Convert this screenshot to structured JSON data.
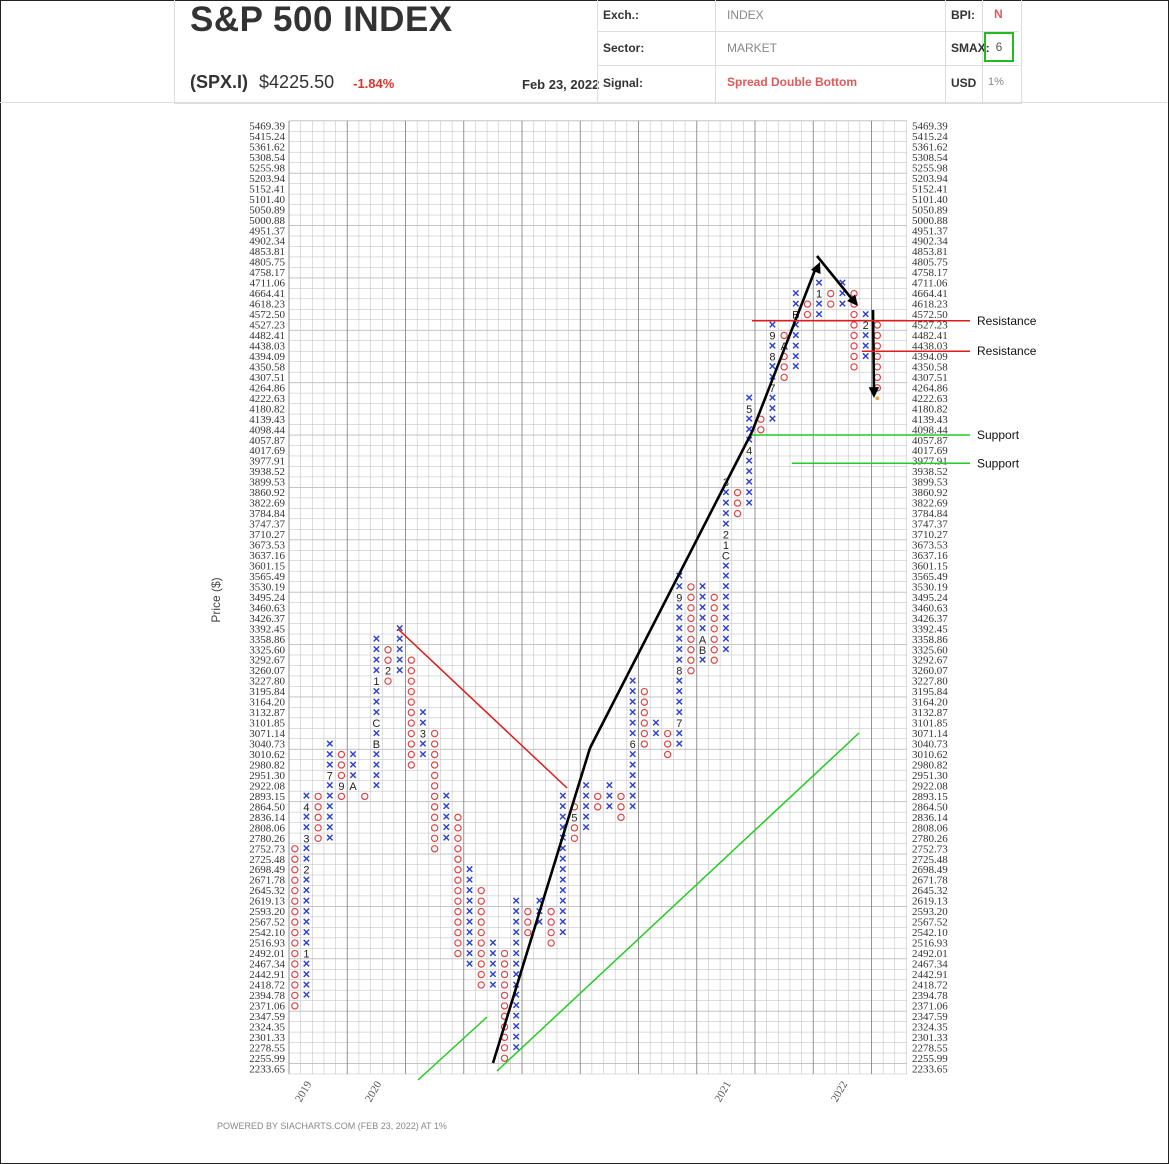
{
  "header": {
    "title": "S&P 500 INDEX",
    "ticker": "(SPX.I)",
    "price": "$4225.50",
    "change": "-1.84%",
    "date": "Feb 23, 2022",
    "exch_label": "Exch.:",
    "exch_value": "INDEX",
    "sector_label": "Sector:",
    "sector_value": "MARKET",
    "signal_label": "Signal:",
    "signal_value": "Spread Double Bottom",
    "bpi_label": "BPI:",
    "bpi_value": "N",
    "smax_label": "SMAX:",
    "smax_value": "6",
    "usd_label": "USD",
    "usd_value": "1%"
  },
  "colors": {
    "x_mark": "#2b3fd8",
    "o_mark": "#e04444",
    "resistance": "#e01b1b",
    "support": "#22cc22",
    "trend": "#000000",
    "grid": "#bbbbbb",
    "grid_major": "#888888"
  },
  "chart_data": {
    "type": "point-and-figure",
    "ylabel": "Price ($)",
    "footer": "POWERED BY SIACHARTS.COM (FEB 23, 2022) AT 1%",
    "box_size_pct": 1,
    "y_ticks": [
      "5469.39",
      "5415.24",
      "5361.62",
      "5308.54",
      "5255.98",
      "5203.94",
      "5152.41",
      "5101.40",
      "5050.89",
      "5000.88",
      "4951.37",
      "4902.34",
      "4853.81",
      "4805.75",
      "4758.17",
      "4711.06",
      "4664.41",
      "4618.23",
      "4572.50",
      "4527.23",
      "4482.41",
      "4438.03",
      "4394.09",
      "4350.58",
      "4307.51",
      "4264.86",
      "4222.63",
      "4180.82",
      "4139.43",
      "4098.44",
      "4057.87",
      "4017.69",
      "3977.91",
      "3938.52",
      "3899.53",
      "3860.92",
      "3822.69",
      "3784.84",
      "3747.37",
      "3710.27",
      "3673.53",
      "3637.16",
      "3601.15",
      "3565.49",
      "3530.19",
      "3495.24",
      "3460.63",
      "3426.37",
      "3392.45",
      "3358.86",
      "3325.60",
      "3292.67",
      "3260.07",
      "3227.80",
      "3195.84",
      "3164.20",
      "3132.87",
      "3101.85",
      "3071.14",
      "3040.73",
      "3010.62",
      "2980.82",
      "2951.30",
      "2922.08",
      "2893.15",
      "2864.50",
      "2836.14",
      "2808.06",
      "2780.26",
      "2752.73",
      "2725.48",
      "2698.49",
      "2671.78",
      "2645.32",
      "2619.13",
      "2593.20",
      "2567.52",
      "2542.10",
      "2516.93",
      "2492.01",
      "2467.34",
      "2442.91",
      "2418.72",
      "2394.78",
      "2371.06",
      "2347.59",
      "2324.35",
      "2301.33",
      "2278.55",
      "2255.99",
      "2233.65"
    ],
    "x_year_labels": [
      {
        "label": "2019",
        "col": 0
      },
      {
        "label": "2020",
        "col": 6
      },
      {
        "label": "2021",
        "col": 36
      },
      {
        "label": "2022",
        "col": 46
      }
    ],
    "columns": [
      {
        "type": "O",
        "top": "2752.73",
        "bottom": "2371.06"
      },
      {
        "type": "X",
        "top": "2893.15",
        "bottom": "2394.78"
      },
      {
        "type": "O",
        "top": "2893.15",
        "bottom": "2780.26"
      },
      {
        "type": "X",
        "top": "3040.73",
        "bottom": "2780.26"
      },
      {
        "type": "O",
        "top": "3010.62",
        "bottom": "2893.15"
      },
      {
        "type": "X",
        "top": "3010.62",
        "bottom": "2922.08"
      },
      {
        "type": "O",
        "top": "2893.15",
        "bottom": "2893.15"
      },
      {
        "type": "X",
        "top": "3358.86",
        "bottom": "2922.08"
      },
      {
        "type": "O",
        "top": "3325.60",
        "bottom": "3227.80"
      },
      {
        "type": "X",
        "top": "3392.45",
        "bottom": "3260.07"
      },
      {
        "type": "O",
        "top": "3292.67",
        "bottom": "2980.82"
      },
      {
        "type": "X",
        "top": "3132.87",
        "bottom": "3010.62"
      },
      {
        "type": "O",
        "top": "3071.14",
        "bottom": "2752.73"
      },
      {
        "type": "X",
        "top": "2893.15",
        "bottom": "2780.26"
      },
      {
        "type": "O",
        "top": "2836.14",
        "bottom": "2492.01"
      },
      {
        "type": "X",
        "top": "2698.49",
        "bottom": "2467.34"
      },
      {
        "type": "O",
        "top": "2645.32",
        "bottom": "2418.72"
      },
      {
        "type": "X",
        "top": "2516.93",
        "bottom": "2418.72"
      },
      {
        "type": "O",
        "top": "2492.01",
        "bottom": "2255.99"
      },
      {
        "type": "X",
        "top": "2619.13",
        "bottom": "2278.55"
      },
      {
        "type": "O",
        "top": "2593.20",
        "bottom": "2542.10"
      },
      {
        "type": "X",
        "top": "2619.13",
        "bottom": "2567.52"
      },
      {
        "type": "O",
        "top": "2593.20",
        "bottom": "2516.93"
      },
      {
        "type": "X",
        "top": "2893.15",
        "bottom": "2542.10"
      },
      {
        "type": "O",
        "top": "2864.50",
        "bottom": "2780.26"
      },
      {
        "type": "X",
        "top": "2922.08",
        "bottom": "2808.06"
      },
      {
        "type": "O",
        "top": "2893.15",
        "bottom": "2864.50"
      },
      {
        "type": "X",
        "top": "2922.08",
        "bottom": "2864.50"
      },
      {
        "type": "O",
        "top": "2893.15",
        "bottom": "2836.14"
      },
      {
        "type": "X",
        "top": "3227.80",
        "bottom": "2864.50"
      },
      {
        "type": "O",
        "top": "3195.84",
        "bottom": "3040.73"
      },
      {
        "type": "X",
        "top": "3101.85",
        "bottom": "3071.14"
      },
      {
        "type": "O",
        "top": "3071.14",
        "bottom": "3010.62"
      },
      {
        "type": "X",
        "top": "3565.49",
        "bottom": "3040.73"
      },
      {
        "type": "O",
        "top": "3530.19",
        "bottom": "3260.07"
      },
      {
        "type": "X",
        "top": "3530.19",
        "bottom": "3292.67"
      },
      {
        "type": "O",
        "top": "3495.24",
        "bottom": "3292.67"
      },
      {
        "type": "X",
        "top": "3899.53",
        "bottom": "3325.60"
      },
      {
        "type": "O",
        "top": "3860.92",
        "bottom": "3784.84"
      },
      {
        "type": "X",
        "top": "4222.63",
        "bottom": "3822.69"
      },
      {
        "type": "O",
        "top": "4139.43",
        "bottom": "4098.44"
      },
      {
        "type": "X",
        "top": "4527.23",
        "bottom": "4139.43"
      },
      {
        "type": "O",
        "top": "4482.41",
        "bottom": "4307.51"
      },
      {
        "type": "X",
        "top": "4664.41",
        "bottom": "4350.58"
      },
      {
        "type": "O",
        "top": "4618.23",
        "bottom": "4572.50"
      },
      {
        "type": "X",
        "top": "4711.06",
        "bottom": "4572.50"
      },
      {
        "type": "O",
        "top": "4664.41",
        "bottom": "4618.23"
      },
      {
        "type": "X",
        "top": "4711.06",
        "bottom": "4618.23"
      },
      {
        "type": "O",
        "top": "4664.41",
        "bottom": "4350.58"
      },
      {
        "type": "X",
        "top": "4572.50",
        "bottom": "4394.09"
      },
      {
        "type": "O",
        "top": "4527.23",
        "bottom": "4264.86"
      }
    ],
    "month_labels": [
      {
        "label": "1",
        "col": 1,
        "price": "2492.01"
      },
      {
        "label": "2",
        "col": 1,
        "price": "2698.49"
      },
      {
        "label": "3",
        "col": 1,
        "price": "2780.26"
      },
      {
        "label": "4",
        "col": 1,
        "price": "2864.50"
      },
      {
        "label": "5",
        "col": 1,
        "price": "2922.08"
      },
      {
        "label": "6",
        "col": 2,
        "price": "2752.73"
      },
      {
        "label": "7",
        "col": 3,
        "price": "2951.30"
      },
      {
        "label": "9",
        "col": 4,
        "price": "2922.08"
      },
      {
        "label": "A",
        "col": 5,
        "price": "2922.08"
      },
      {
        "label": "B",
        "col": 7,
        "price": "3040.73"
      },
      {
        "label": "C",
        "col": 7,
        "price": "3101.85"
      },
      {
        "label": "1",
        "col": 7,
        "price": "3227.80"
      },
      {
        "label": "2",
        "col": 8,
        "price": "3260.07"
      },
      {
        "label": "3",
        "col": 11,
        "price": "3071.14"
      },
      {
        "label": "4",
        "col": 21,
        "price": "2492.01"
      },
      {
        "label": "5",
        "col": 24,
        "price": "2836.14"
      },
      {
        "label": "6",
        "col": 29,
        "price": "3040.73"
      },
      {
        "label": "7",
        "col": 33,
        "price": "3101.85"
      },
      {
        "label": "8",
        "col": 33,
        "price": "3260.07"
      },
      {
        "label": "9",
        "col": 33,
        "price": "3495.24"
      },
      {
        "label": "A",
        "col": 35,
        "price": "3358.86"
      },
      {
        "label": "B",
        "col": 35,
        "price": "3325.60"
      },
      {
        "label": "C",
        "col": 37,
        "price": "3637.16"
      },
      {
        "label": "1",
        "col": 37,
        "price": "3673.53"
      },
      {
        "label": "2",
        "col": 37,
        "price": "3710.27"
      },
      {
        "label": "3",
        "col": 37,
        "price": "3899.53"
      },
      {
        "label": "4",
        "col": 39,
        "price": "4017.69"
      },
      {
        "label": "5",
        "col": 39,
        "price": "4180.82"
      },
      {
        "label": "6",
        "col": 40,
        "price": "4180.82"
      },
      {
        "label": "7",
        "col": 41,
        "price": "4264.86"
      },
      {
        "label": "8",
        "col": 41,
        "price": "4394.09"
      },
      {
        "label": "A",
        "col": 42,
        "price": "4438.03"
      },
      {
        "label": "9",
        "col": 41,
        "price": "4482.41"
      },
      {
        "label": "B",
        "col": 43,
        "price": "4572.50"
      },
      {
        "label": "C",
        "col": 44,
        "price": "4527.23"
      },
      {
        "label": "1",
        "col": 45,
        "price": "4664.41"
      },
      {
        "label": "2",
        "col": 49,
        "price": "4527.23"
      }
    ],
    "last_price": "4225.50",
    "annotations": {
      "resistance_label": "Resistance",
      "support_label": "Support",
      "resistance_levels": [
        "4527.23",
        "4394.09"
      ],
      "support_levels": [
        "4057.87",
        "3977.91"
      ]
    }
  }
}
